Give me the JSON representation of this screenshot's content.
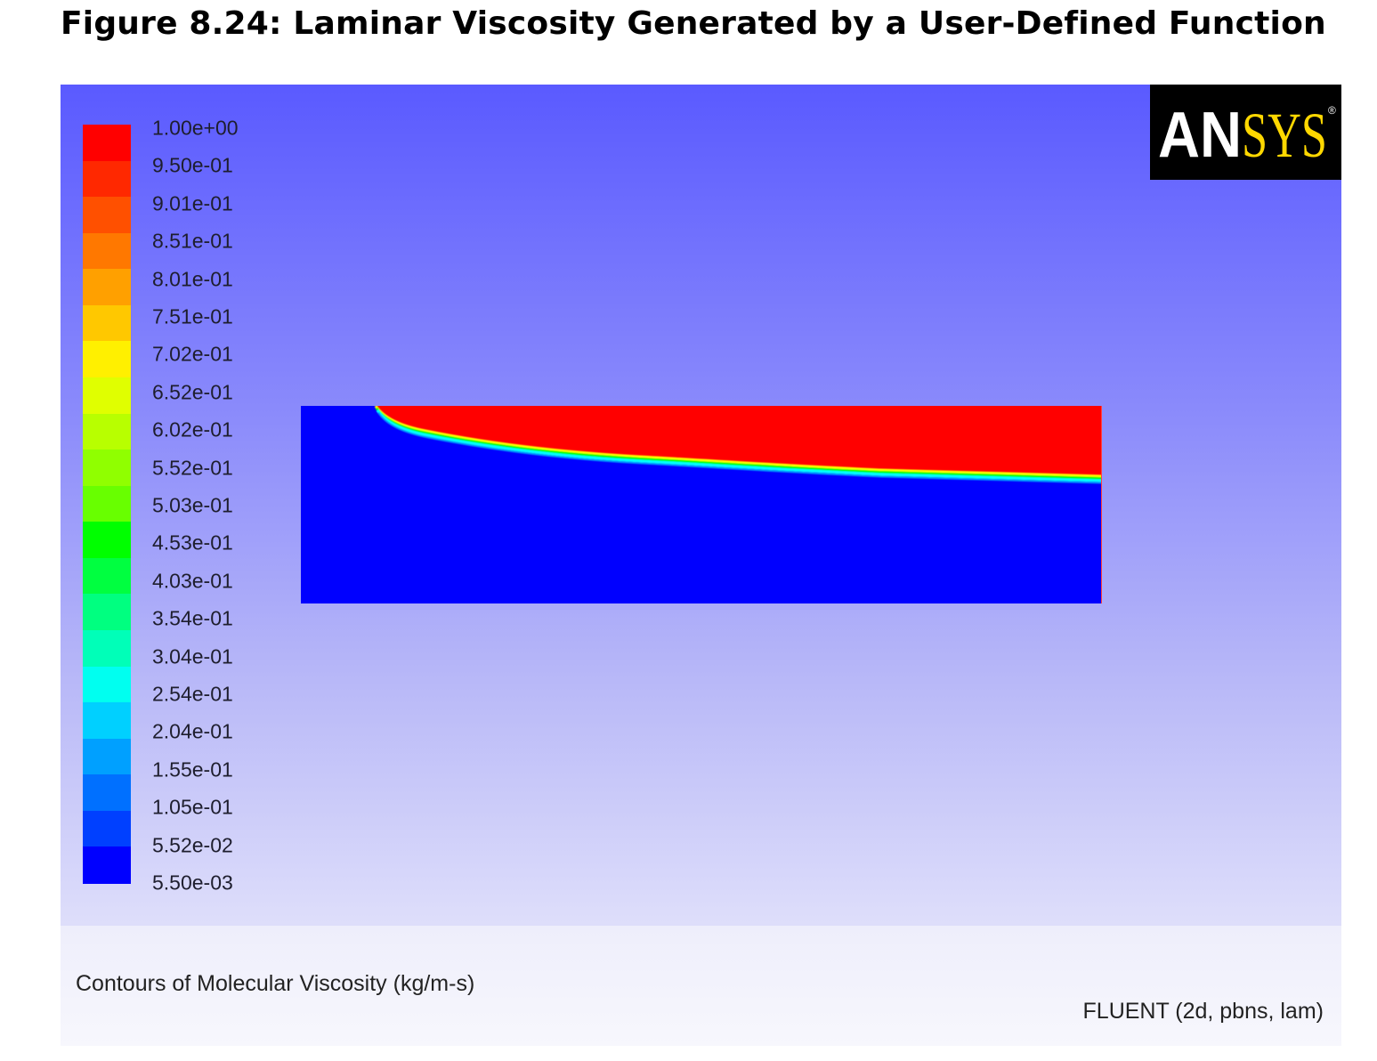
{
  "title": "Figure 8.24: Laminar Viscosity Generated by a User-Defined Function",
  "colorbar": {
    "labels": [
      "1.00e+00",
      "9.50e-01",
      "9.01e-01",
      "8.51e-01",
      "8.01e-01",
      "7.51e-01",
      "7.02e-01",
      "6.52e-01",
      "6.02e-01",
      "5.52e-01",
      "5.03e-01",
      "4.53e-01",
      "4.03e-01",
      "3.54e-01",
      "3.04e-01",
      "2.54e-01",
      "2.04e-01",
      "1.55e-01",
      "1.05e-01",
      "5.52e-02",
      "5.50e-03"
    ],
    "colors": [
      "#ff0000",
      "#ff2800",
      "#ff5000",
      "#ff7800",
      "#ffa000",
      "#ffc800",
      "#fff000",
      "#e0ff00",
      "#b8ff00",
      "#90ff00",
      "#68ff00",
      "#00ff00",
      "#00ff40",
      "#00ff80",
      "#00ffb8",
      "#00fff0",
      "#00d0ff",
      "#00a0ff",
      "#0070ff",
      "#0040ff",
      "#0000ff"
    ]
  },
  "logo": {
    "text_white": "AN",
    "text_yellow": "SYS",
    "colors": {
      "white": "#ffffff",
      "yellow": "#ffd800",
      "background": "#000000"
    }
  },
  "plot": {
    "upper_color": "#ff0000",
    "lower_color": "#0000ff",
    "interface_colors": [
      "#ffff00",
      "#00ff00",
      "#00ffff"
    ]
  },
  "caption": "Contours of Molecular Viscosity (kg/m-s)",
  "solver_info": "FLUENT (2d, pbns, lam)"
}
